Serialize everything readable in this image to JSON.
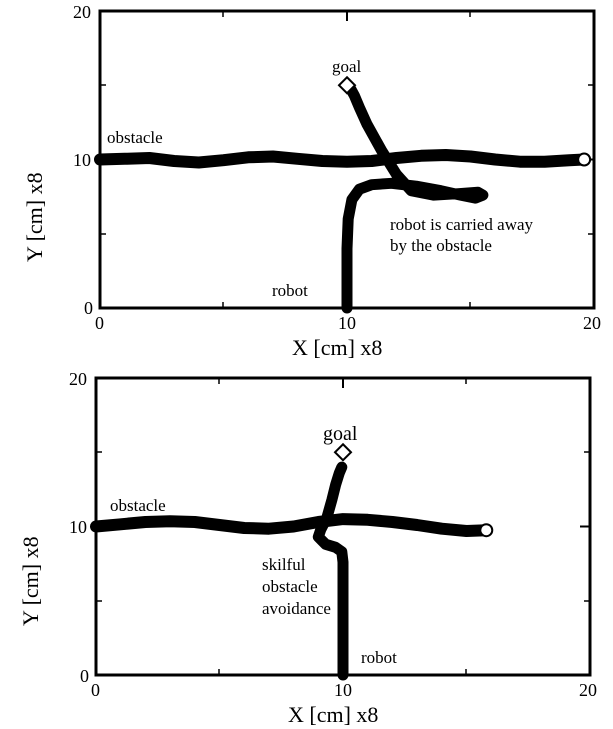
{
  "chart_data": [
    {
      "type": "line",
      "xlabel": "X [cm] x8",
      "ylabel": "Y [cm] x8",
      "xlim": [
        0,
        20
      ],
      "ylim": [
        0,
        20
      ],
      "x_ticks": [
        "0",
        "10",
        "20"
      ],
      "y_ticks": [
        "0",
        "10",
        "20"
      ],
      "grid": false,
      "series": [
        {
          "name": "obstacle",
          "x": [
            0,
            1,
            2,
            3,
            4,
            5,
            6,
            7,
            8,
            9,
            10,
            11,
            12,
            13,
            14,
            15,
            16,
            17,
            18,
            19,
            19.6
          ],
          "y": [
            10.0,
            10.05,
            10.1,
            9.9,
            9.8,
            9.95,
            10.15,
            10.2,
            10.05,
            9.9,
            9.85,
            9.9,
            10.1,
            10.25,
            10.3,
            10.2,
            10.0,
            9.85,
            9.85,
            9.95,
            10.0
          ]
        },
        {
          "name": "robot",
          "x": [
            10.0,
            10.0,
            10.0,
            10.05,
            10.2,
            10.5,
            11.0,
            11.8,
            12.8,
            13.8,
            14.6,
            15.2,
            15.5,
            15.3,
            14.5,
            13.5,
            12.6,
            12.0,
            11.4,
            10.8,
            10.5,
            10.3,
            10.1
          ],
          "y": [
            0.0,
            2.0,
            4.0,
            6.0,
            7.3,
            8.0,
            8.3,
            8.4,
            8.2,
            7.9,
            7.6,
            7.4,
            7.6,
            7.8,
            7.7,
            7.6,
            7.9,
            9.0,
            10.6,
            12.4,
            13.5,
            14.3,
            14.9
          ]
        }
      ],
      "markers": {
        "goal": {
          "x": 10.0,
          "y": 15.0,
          "shape": "diamond"
        },
        "obstacle_end": {
          "x": 19.6,
          "y": 10.0,
          "shape": "circle"
        }
      },
      "annotations": {
        "goal": "goal",
        "obstacle": "obstacle",
        "robot": "robot",
        "carried_line1": "robot is carried away",
        "carried_line2": "by the obstacle"
      }
    },
    {
      "type": "line",
      "xlabel": "X [cm] x8",
      "ylabel": "Y [cm] x8",
      "xlim": [
        0,
        20
      ],
      "ylim": [
        0,
        20
      ],
      "x_ticks": [
        "0",
        "10",
        "20"
      ],
      "y_ticks": [
        "0",
        "10",
        "20"
      ],
      "grid": false,
      "series": [
        {
          "name": "obstacle",
          "x": [
            0,
            1,
            2,
            3,
            4,
            5,
            6,
            7,
            8,
            9,
            10,
            11,
            12,
            13,
            14,
            15,
            15.8
          ],
          "y": [
            10.0,
            10.15,
            10.3,
            10.35,
            10.3,
            10.1,
            9.9,
            9.85,
            10.0,
            10.3,
            10.5,
            10.45,
            10.3,
            10.1,
            9.85,
            9.7,
            9.75
          ]
        },
        {
          "name": "robot",
          "x": [
            10.0,
            10.0,
            10.0,
            10.0,
            10.0,
            9.95,
            9.7,
            9.3,
            9.0,
            9.1,
            9.35,
            9.55,
            9.7,
            9.85,
            9.95
          ],
          "y": [
            0.0,
            2.0,
            4.0,
            6.0,
            7.6,
            8.3,
            8.6,
            8.8,
            9.3,
            9.8,
            10.6,
            11.8,
            12.8,
            13.6,
            14.0
          ]
        }
      ],
      "markers": {
        "goal": {
          "x": 10.0,
          "y": 15.0,
          "shape": "diamond"
        },
        "obstacle_end": {
          "x": 15.8,
          "y": 9.75,
          "shape": "circle"
        }
      },
      "annotations": {
        "goal": "goal",
        "obstacle": "obstacle",
        "robot": "robot",
        "avoid_line1": "skilful",
        "avoid_line2": "obstacle",
        "avoid_line3": "avoidance"
      }
    }
  ]
}
